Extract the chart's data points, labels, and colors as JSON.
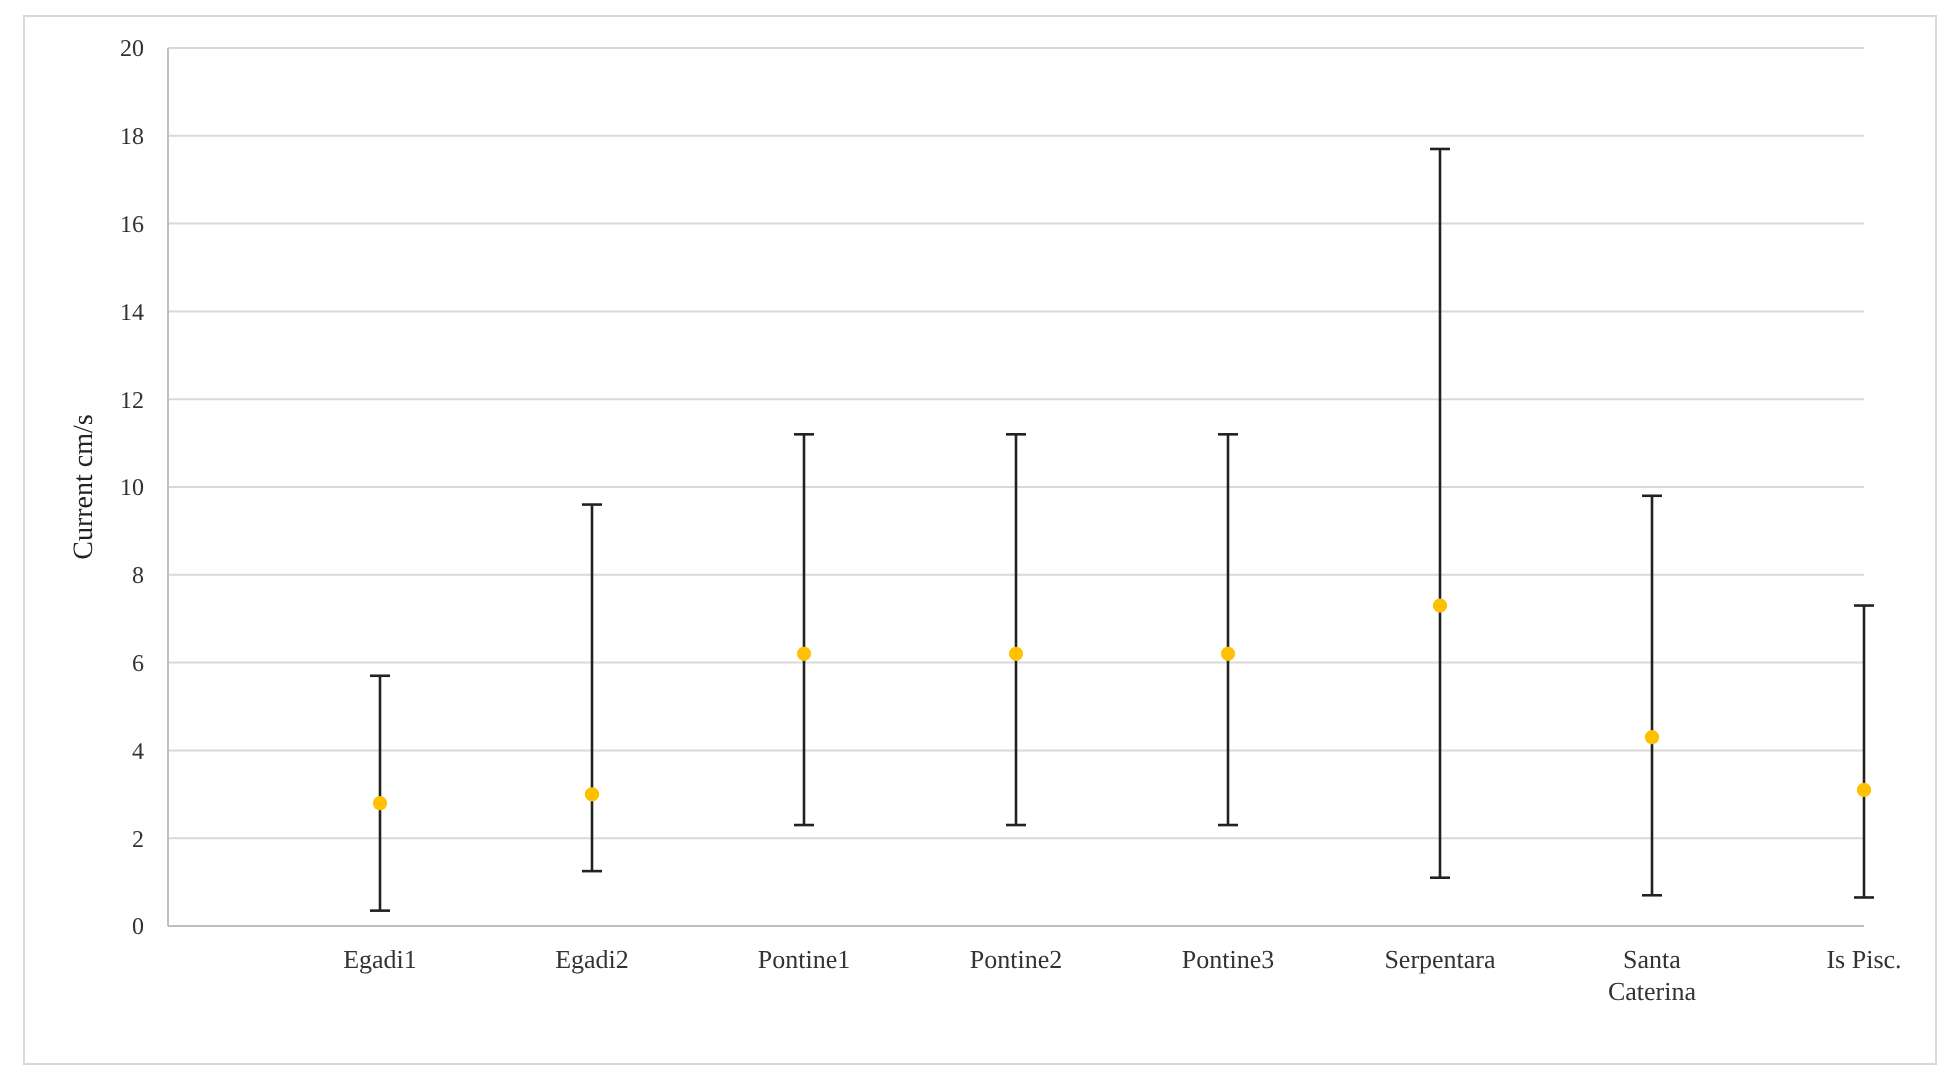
{
  "chart_data": {
    "type": "scatter",
    "ylabel": "Current cm/s",
    "categories": [
      "Egadi1",
      "Egadi2",
      "Pontine1",
      "Pontine2",
      "Pontine3",
      "Serpentara",
      "Santa Caterina",
      "Is Pisc."
    ],
    "values": [
      2.8,
      3.0,
      6.2,
      6.2,
      6.2,
      7.3,
      4.3,
      3.1
    ],
    "errors": [
      [
        0.35,
        5.7
      ],
      [
        1.25,
        9.6
      ],
      [
        2.3,
        11.2
      ],
      [
        2.3,
        11.2
      ],
      [
        2.3,
        11.2
      ],
      [
        1.1,
        17.7
      ],
      [
        0.7,
        9.8
      ],
      [
        0.65,
        7.3
      ]
    ],
    "color": "#ffc000",
    "marker": "circle",
    "ylim": [
      0,
      20
    ],
    "yticks": [
      0,
      2,
      4,
      6,
      8,
      10,
      12,
      14,
      16,
      18,
      20
    ],
    "grid": "y"
  }
}
